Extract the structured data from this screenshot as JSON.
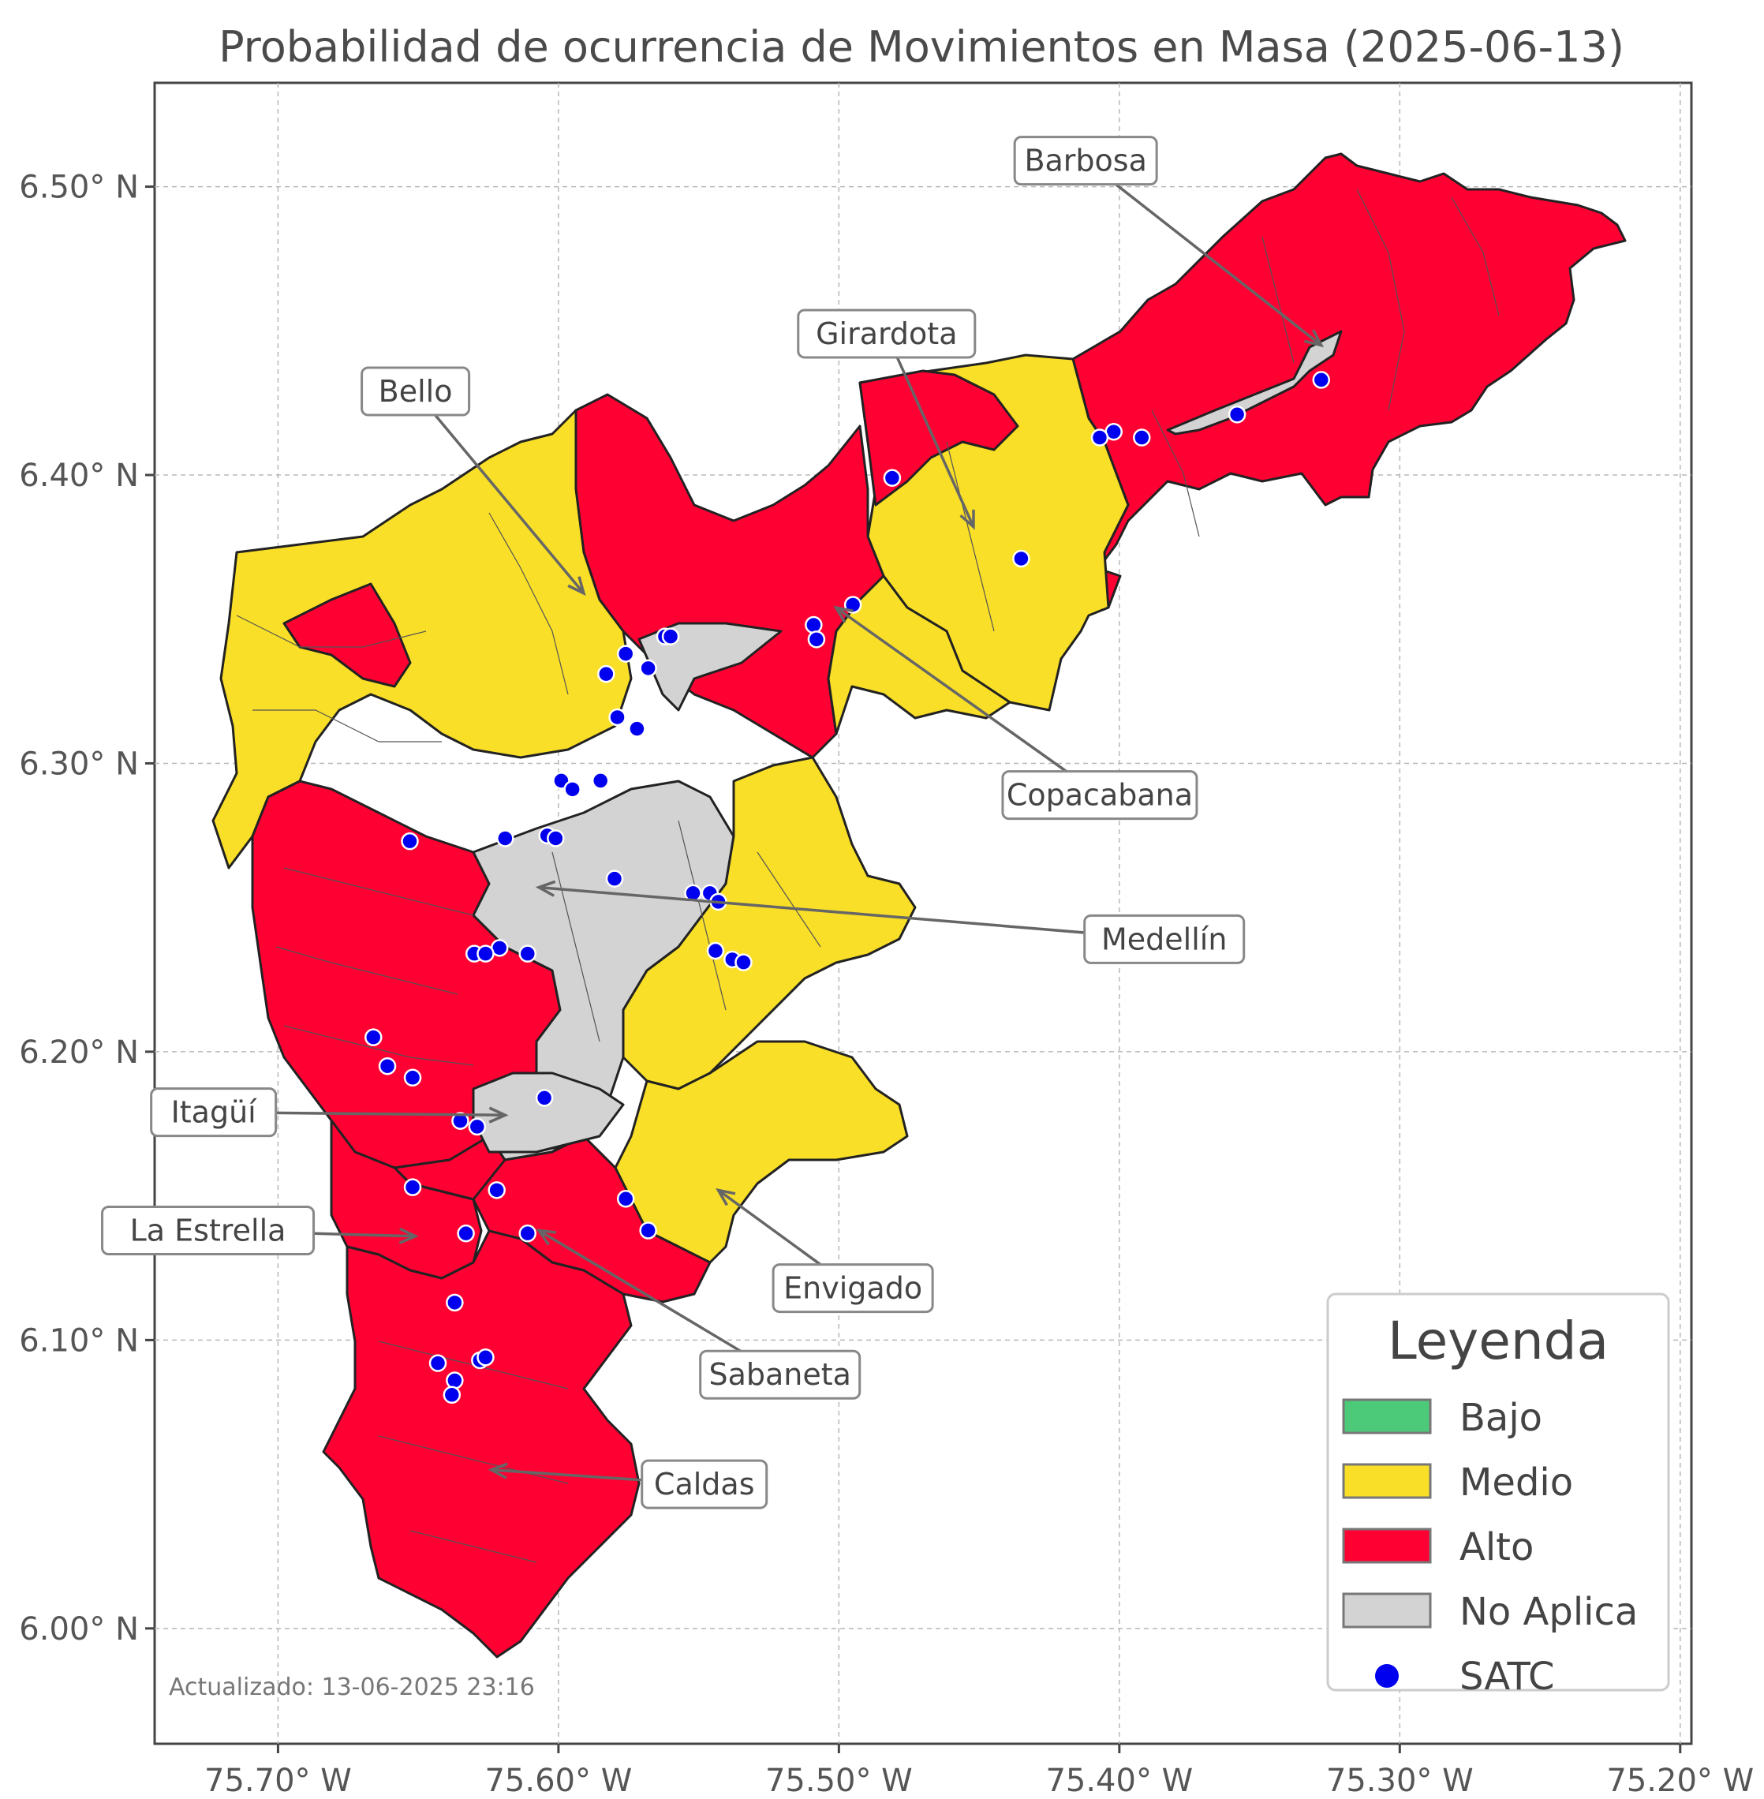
{
  "title": "Probabilidad de ocurrencia de Movimientos en Masa (2025-06-13)",
  "axes": {
    "x_ticks": [
      "75.70° W",
      "75.60° W",
      "75.50° W",
      "75.40° W",
      "75.30° W",
      "75.20° W"
    ],
    "y_ticks": [
      "6.50° N",
      "6.40° N",
      "6.30° N",
      "6.20° N",
      "6.10° N",
      "6.00° N"
    ],
    "lon_range": [
      -75.744,
      -75.196
    ],
    "lat_range": [
      5.96,
      6.536
    ]
  },
  "colors": {
    "bajo": "#4dc97a",
    "medio": "#f9df27",
    "alto": "#ff0033",
    "no_aplica": "#d3d3d3",
    "satc": "#0000ee"
  },
  "municipalities": [
    {
      "name": "Barbosa",
      "label_lon": -75.412,
      "label_lat": 6.509,
      "target_lon": -75.328,
      "target_lat": 6.445
    },
    {
      "name": "Girardota",
      "label_lon": -75.483,
      "label_lat": 6.449,
      "target_lon": -75.452,
      "target_lat": 6.382
    },
    {
      "name": "Bello",
      "label_lon": -75.651,
      "label_lat": 6.429,
      "target_lon": -75.591,
      "target_lat": 6.359
    },
    {
      "name": "Copacabana",
      "label_lon": -75.407,
      "label_lat": 6.289,
      "target_lon": -75.501,
      "target_lat": 6.354
    },
    {
      "name": "Medellín",
      "label_lon": -75.384,
      "label_lat": 6.239,
      "target_lon": -75.607,
      "target_lat": 6.257
    },
    {
      "name": "Itagüí",
      "label_lon": -75.723,
      "label_lat": 6.179,
      "target_lon": -75.619,
      "target_lat": 6.178
    },
    {
      "name": "La Estrella",
      "label_lon": -75.725,
      "label_lat": 6.138,
      "target_lon": -75.651,
      "target_lat": 6.136
    },
    {
      "name": "Envigado",
      "label_lon": -75.495,
      "label_lat": 6.118,
      "target_lon": -75.543,
      "target_lat": 6.152
    },
    {
      "name": "Sabaneta",
      "label_lon": -75.521,
      "label_lat": 6.088,
      "target_lon": -75.607,
      "target_lat": 6.138
    },
    {
      "name": "Caldas",
      "label_lon": -75.548,
      "label_lat": 6.05,
      "target_lon": -75.624,
      "target_lat": 6.055
    }
  ],
  "satc_stations": [
    [
      -75.328,
      6.433
    ],
    [
      -75.358,
      6.421
    ],
    [
      -75.392,
      6.413
    ],
    [
      -75.402,
      6.415
    ],
    [
      -75.407,
      6.413
    ],
    [
      -75.435,
      6.371
    ],
    [
      -75.481,
      6.399
    ],
    [
      -75.495,
      6.355
    ],
    [
      -75.509,
      6.348
    ],
    [
      -75.508,
      6.343
    ],
    [
      -75.562,
      6.344
    ],
    [
      -75.56,
      6.344
    ],
    [
      -75.568,
      6.333
    ],
    [
      -75.576,
      6.338
    ],
    [
      -75.583,
      6.331
    ],
    [
      -75.579,
      6.316
    ],
    [
      -75.572,
      6.312
    ],
    [
      -75.599,
      6.294
    ],
    [
      -75.595,
      6.291
    ],
    [
      -75.585,
      6.294
    ],
    [
      -75.604,
      6.275
    ],
    [
      -75.601,
      6.274
    ],
    [
      -75.619,
      6.274
    ],
    [
      -75.653,
      6.273
    ],
    [
      -75.58,
      6.26
    ],
    [
      -75.552,
      6.255
    ],
    [
      -75.546,
      6.255
    ],
    [
      -75.543,
      6.252
    ],
    [
      -75.544,
      6.235
    ],
    [
      -75.538,
      6.232
    ],
    [
      -75.534,
      6.231
    ],
    [
      -75.621,
      6.236
    ],
    [
      -75.63,
      6.234
    ],
    [
      -75.626,
      6.234
    ],
    [
      -75.611,
      6.234
    ],
    [
      -75.666,
      6.205
    ],
    [
      -75.661,
      6.195
    ],
    [
      -75.652,
      6.191
    ],
    [
      -75.605,
      6.184
    ],
    [
      -75.635,
      6.176
    ],
    [
      -75.629,
      6.174
    ],
    [
      -75.652,
      6.153
    ],
    [
      -75.622,
      6.152
    ],
    [
      -75.576,
      6.149
    ],
    [
      -75.568,
      6.138
    ],
    [
      -75.611,
      6.137
    ],
    [
      -75.633,
      6.137
    ],
    [
      -75.637,
      6.113
    ],
    [
      -75.643,
      6.092
    ],
    [
      -75.628,
      6.093
    ],
    [
      -75.626,
      6.094
    ],
    [
      -75.637,
      6.086
    ],
    [
      -75.638,
      6.081
    ]
  ],
  "legend": {
    "title": "Leyenda",
    "items": [
      {
        "label": "Bajo",
        "color": "#4dc97a",
        "kind": "patch"
      },
      {
        "label": "Medio",
        "color": "#f9df27",
        "kind": "patch"
      },
      {
        "label": "Alto",
        "color": "#ff0033",
        "kind": "patch"
      },
      {
        "label": "No Aplica",
        "color": "#d3d3d3",
        "kind": "patch"
      },
      {
        "label": "SATC",
        "color": "#0000ee",
        "kind": "point"
      }
    ]
  },
  "footer": "Actualizado: 13-06-2025 23:16"
}
